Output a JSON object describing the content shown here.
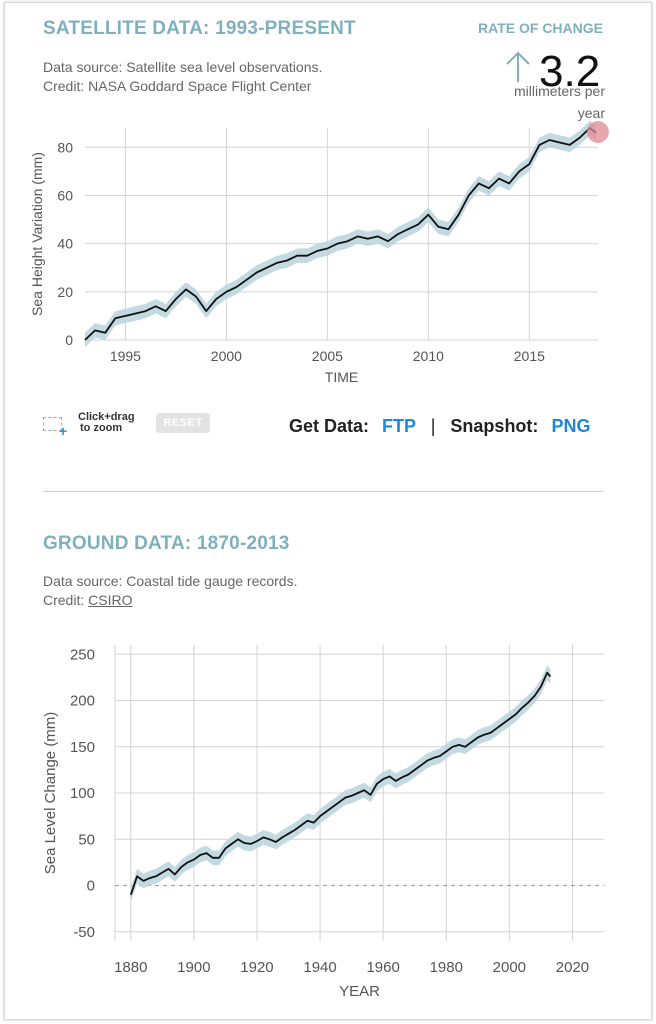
{
  "satellite": {
    "title": "SATELLITE DATA: 1993-PRESENT",
    "source": "Data source: Satellite sea level observations.",
    "credit": "Credit: NASA Goddard Space Flight Center",
    "rate": {
      "title": "RATE OF CHANGE",
      "value": "3.2",
      "unit_line1": "millimeters per",
      "unit_line2": "year"
    },
    "controls": {
      "zoom_line1": "Click+drag",
      "zoom_line2": "to zoom",
      "reset_label": "RESET",
      "get_data_label": "Get Data:",
      "ftp_label": "FTP",
      "separator": "|",
      "snapshot_label": "Snapshot:",
      "png_label": "PNG"
    }
  },
  "ground": {
    "title": "GROUND DATA: 1870-2013",
    "source": "Data source: Coastal tide gauge records.",
    "credit_prefix": "Credit: ",
    "credit_link": "CSIRO"
  },
  "colors": {
    "title": "#7fb0bd",
    "band": "#b9d3dd",
    "line": "#111111",
    "link": "#1e88d8",
    "highlight": "#e08a92"
  },
  "chart_data": [
    {
      "type": "line",
      "xlabel": "TIME",
      "ylabel": "Sea Height Variation (mm)",
      "xlim": [
        1993,
        2018.4
      ],
      "ylim": [
        0,
        88
      ],
      "xticks": [
        1995,
        2000,
        2005,
        2010,
        2015
      ],
      "yticks": [
        0,
        20,
        40,
        60,
        80
      ],
      "grid": true,
      "band_halfwidth": 3,
      "series": [
        {
          "x": [
            1993.0,
            1993.5,
            1994.0,
            1994.5,
            1995.0,
            1995.5,
            1996.0,
            1996.5,
            1997.0,
            1997.5,
            1998.0,
            1998.5,
            1999.0,
            1999.5,
            2000.0,
            2000.5,
            2001.0,
            2001.5,
            2002.0,
            2002.5,
            2003.0,
            2003.5,
            2004.0,
            2004.5,
            2005.0,
            2005.5,
            2006.0,
            2006.5,
            2007.0,
            2007.5,
            2008.0,
            2008.5,
            2009.0,
            2009.5,
            2010.0,
            2010.5,
            2011.0,
            2011.5,
            2012.0,
            2012.5,
            2013.0,
            2013.5,
            2014.0,
            2014.5,
            2015.0,
            2015.5,
            2016.0,
            2016.5,
            2017.0,
            2017.5,
            2018.0,
            2018.3
          ],
          "y": [
            0,
            4,
            3,
            9,
            10,
            11,
            12,
            14,
            12,
            17,
            21,
            18,
            12,
            17,
            20,
            22,
            25,
            28,
            30,
            32,
            33,
            35,
            35,
            37,
            38,
            40,
            41,
            43,
            42,
            43,
            41,
            44,
            46,
            48,
            52,
            47,
            46,
            52,
            60,
            65,
            63,
            67,
            65,
            70,
            73,
            81,
            83,
            82,
            81,
            84,
            88,
            86
          ]
        }
      ]
    },
    {
      "type": "line",
      "xlabel": "YEAR",
      "ylabel": "Sea Level Change (mm)",
      "xlim": [
        1875,
        2030
      ],
      "ylim": [
        -60,
        260
      ],
      "xticks": [
        1880,
        1900,
        1920,
        1940,
        1960,
        1980,
        2000,
        2020
      ],
      "yticks": [
        -50,
        0,
        50,
        100,
        150,
        200,
        250
      ],
      "grid": true,
      "zero_line": true,
      "band_halfwidth": 8,
      "series": [
        {
          "x": [
            1880,
            1882,
            1884,
            1886,
            1888,
            1890,
            1892,
            1894,
            1896,
            1898,
            1900,
            1902,
            1904,
            1906,
            1908,
            1910,
            1912,
            1914,
            1916,
            1918,
            1920,
            1922,
            1924,
            1926,
            1928,
            1930,
            1932,
            1934,
            1936,
            1938,
            1940,
            1942,
            1944,
            1946,
            1948,
            1950,
            1952,
            1954,
            1956,
            1958,
            1960,
            1962,
            1964,
            1966,
            1968,
            1970,
            1972,
            1974,
            1976,
            1978,
            1980,
            1982,
            1984,
            1986,
            1988,
            1990,
            1992,
            1994,
            1996,
            1998,
            2000,
            2002,
            2004,
            2006,
            2008,
            2010,
            2012,
            2013
          ],
          "y": [
            -10,
            10,
            5,
            8,
            10,
            14,
            18,
            12,
            20,
            25,
            28,
            33,
            35,
            30,
            30,
            40,
            45,
            50,
            46,
            45,
            48,
            52,
            50,
            47,
            52,
            56,
            60,
            65,
            70,
            68,
            75,
            80,
            85,
            90,
            95,
            97,
            100,
            103,
            98,
            110,
            115,
            118,
            113,
            117,
            120,
            125,
            130,
            135,
            138,
            140,
            145,
            150,
            152,
            150,
            155,
            160,
            163,
            165,
            170,
            175,
            180,
            185,
            192,
            198,
            205,
            215,
            230,
            226
          ]
        }
      ]
    }
  ]
}
